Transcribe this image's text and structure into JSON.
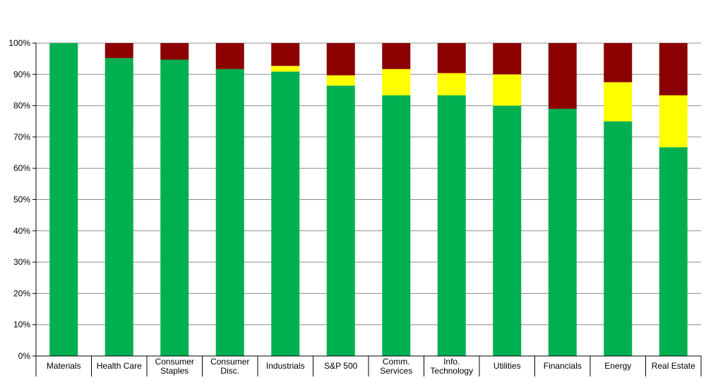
{
  "chart_data": {
    "type": "bar",
    "stacked": true,
    "categories": [
      "Materials",
      "Health Care",
      "Consumer\nStaples",
      "Consumer\nDisc.",
      "Industrials",
      "S&P 500",
      "Comm.\nServices",
      "Info.\nTechnology",
      "Utilities",
      "Financials",
      "Energy",
      "Real Estate"
    ],
    "series": [
      {
        "color": "#00B050",
        "values": [
          100,
          95.2,
          94.7,
          91.7,
          90.9,
          86.4,
          83.3,
          83.3,
          80.0,
          79.0,
          75.0,
          66.7
        ]
      },
      {
        "color": "#FFFF00",
        "values": [
          0,
          0,
          0,
          0,
          1.8,
          3.3,
          8.4,
          7.1,
          10.0,
          0,
          12.5,
          16.6
        ]
      },
      {
        "color": "#8B0000",
        "values": [
          0,
          4.8,
          5.3,
          8.3,
          7.3,
          10.3,
          8.3,
          9.6,
          10.0,
          21.0,
          12.5,
          16.7
        ]
      }
    ],
    "ylim": [
      0,
      100
    ],
    "yticks": [
      "0%",
      "10%",
      "20%",
      "30%",
      "40%",
      "50%",
      "60%",
      "70%",
      "80%",
      "90%",
      "100%"
    ],
    "grid": true,
    "legend": "none",
    "xlabel": "",
    "ylabel": "",
    "title": ""
  }
}
